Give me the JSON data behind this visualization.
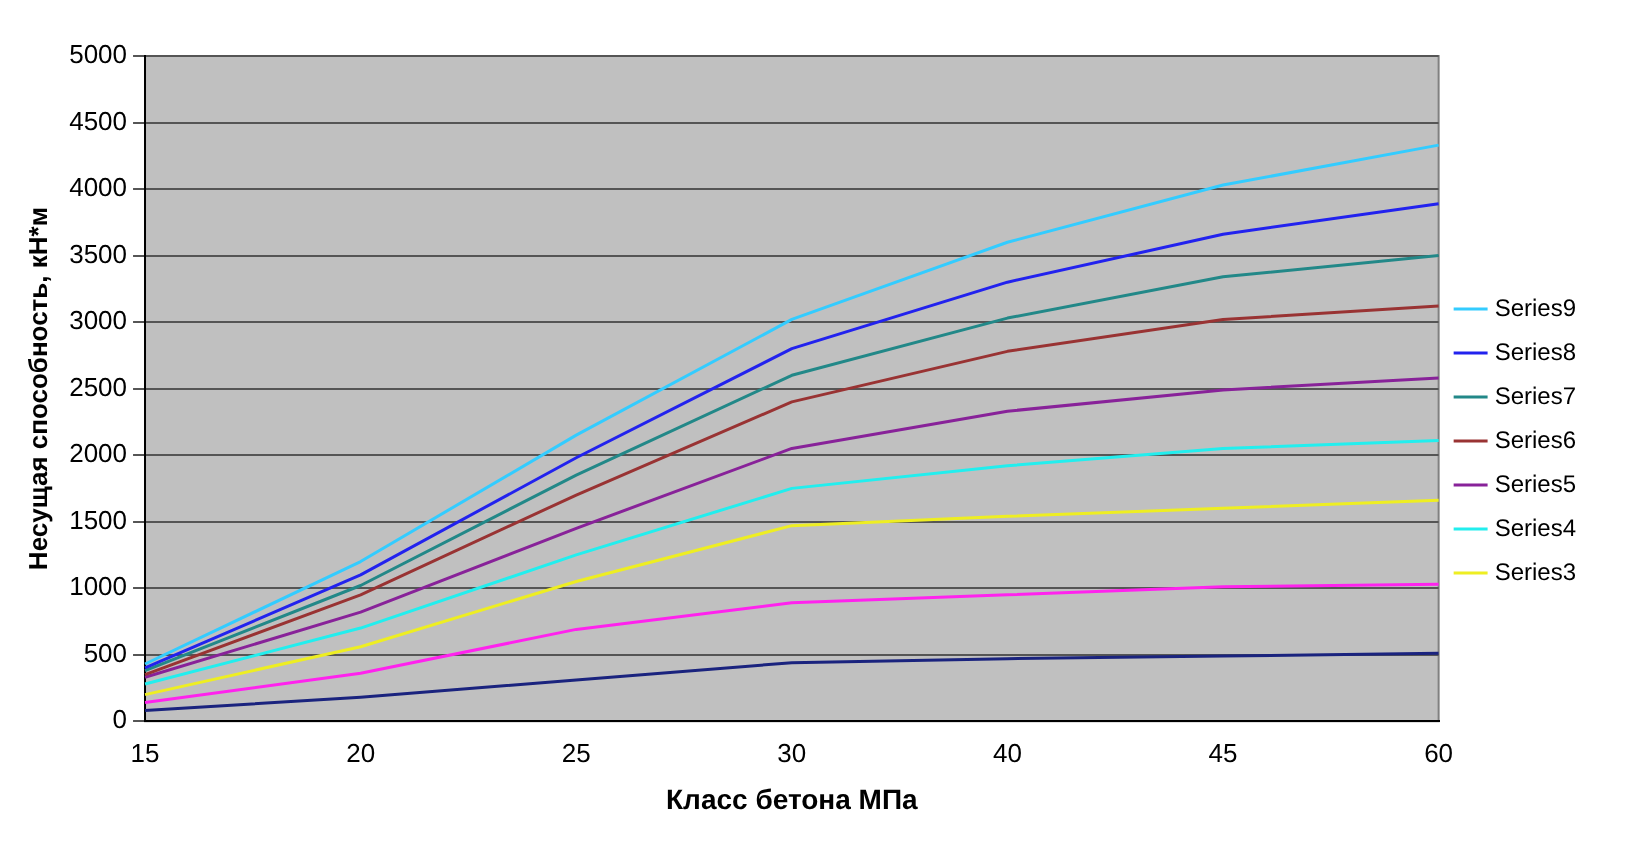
{
  "chart_data": {
    "type": "line",
    "xlabel": "Класс бетона МПа",
    "ylabel": "Несущая способность, кН*м",
    "categories": [
      "15",
      "20",
      "25",
      "30",
      "40",
      "45",
      "60"
    ],
    "ylim": [
      0,
      5000
    ],
    "yticks": [
      0,
      500,
      1000,
      1500,
      2000,
      2500,
      3000,
      3500,
      4000,
      4500,
      5000
    ],
    "grid": "y",
    "legend": "right",
    "marker": "none",
    "line_style": "solid",
    "series": [
      {
        "name": "Series9",
        "color": "#33ccff",
        "values": [
          430,
          1200,
          2150,
          3020,
          3600,
          4030,
          4330
        ]
      },
      {
        "name": "Series8",
        "color": "#2222ee",
        "values": [
          400,
          1100,
          1980,
          2800,
          3300,
          3660,
          3890
        ]
      },
      {
        "name": "Series7",
        "color": "#228888",
        "values": [
          380,
          1020,
          1850,
          2600,
          3030,
          3340,
          3500
        ]
      },
      {
        "name": "Series6",
        "color": "#993333",
        "values": [
          350,
          950,
          1700,
          2400,
          2780,
          3020,
          3120
        ]
      },
      {
        "name": "Series5",
        "color": "#882299",
        "values": [
          330,
          820,
          1450,
          2050,
          2330,
          2490,
          2580
        ]
      },
      {
        "name": "Series4",
        "color": "#22eeee",
        "values": [
          280,
          700,
          1250,
          1750,
          1920,
          2050,
          2110
        ]
      },
      {
        "name": "Series3",
        "color": "#eeee22",
        "values": [
          200,
          560,
          1050,
          1470,
          1540,
          1600,
          1660
        ]
      },
      {
        "color": "#ff22ee",
        "values": [
          140,
          360,
          690,
          890,
          950,
          1010,
          1030
        ]
      },
      {
        "color": "#1a237e",
        "values": [
          80,
          180,
          310,
          440,
          470,
          490,
          510
        ]
      }
    ]
  }
}
